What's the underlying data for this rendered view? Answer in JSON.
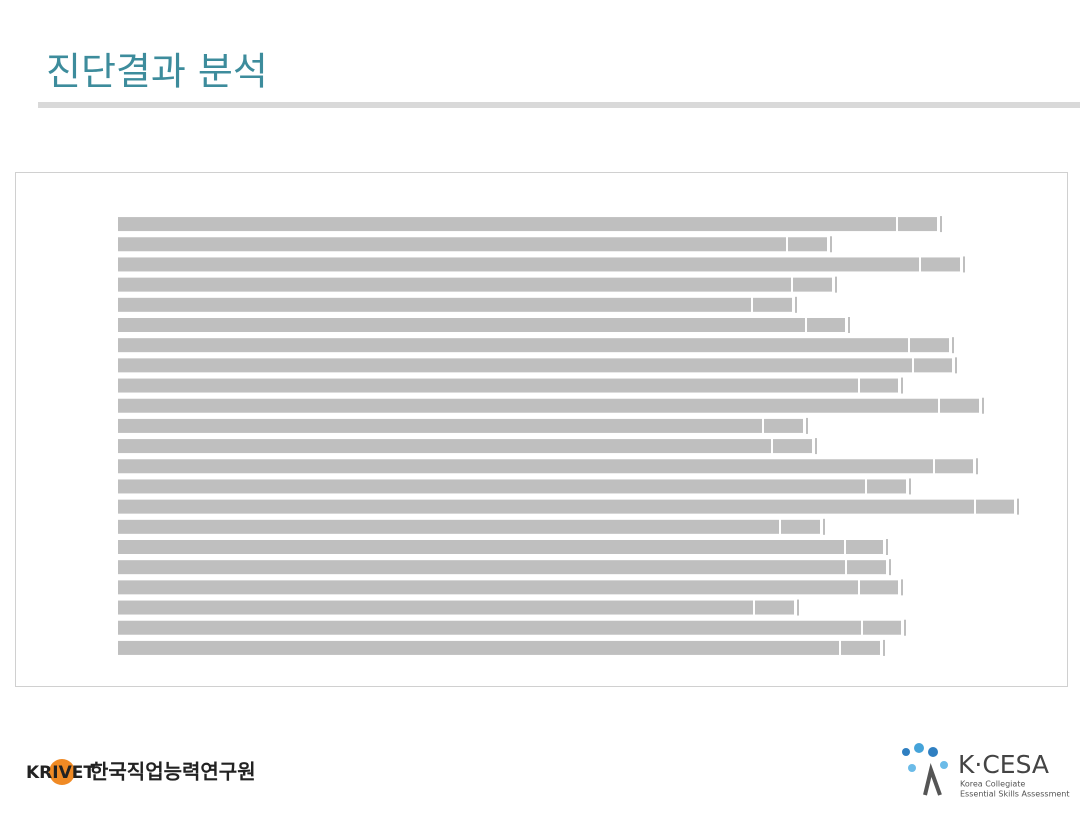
{
  "header": {
    "title": "진단결과 분석"
  },
  "chart_data": {
    "type": "stacked-barh",
    "categories": [
      null,
      null,
      null,
      null,
      null,
      null,
      null,
      null,
      null,
      null,
      null,
      null,
      null,
      null,
      null,
      null,
      null,
      null,
      null,
      null,
      null,
      null
    ],
    "series": [
      {
        "color": "#bfbfbf",
        "values": [
          780,
          670,
          803,
          675,
          635,
          689,
          792,
          796,
          742,
          822,
          646,
          655,
          817,
          749,
          858,
          663,
          728,
          729,
          742,
          637,
          745,
          723
        ]
      },
      {
        "color": "#bfbfbf",
        "values": [
          41,
          41,
          41,
          41,
          41,
          40,
          41,
          40,
          40,
          41,
          41,
          41,
          40,
          41,
          40,
          41,
          39,
          41,
          40,
          41,
          40,
          41
        ]
      }
    ],
    "xlim": [
      0,
      920
    ]
  },
  "footer": {
    "org": "KRIVET",
    "org_name": "한국직업능력연구원",
    "brand": "K·CESA",
    "brand_line1": "Korea Collegiate",
    "brand_line2": "Essential Skills Assessment"
  }
}
